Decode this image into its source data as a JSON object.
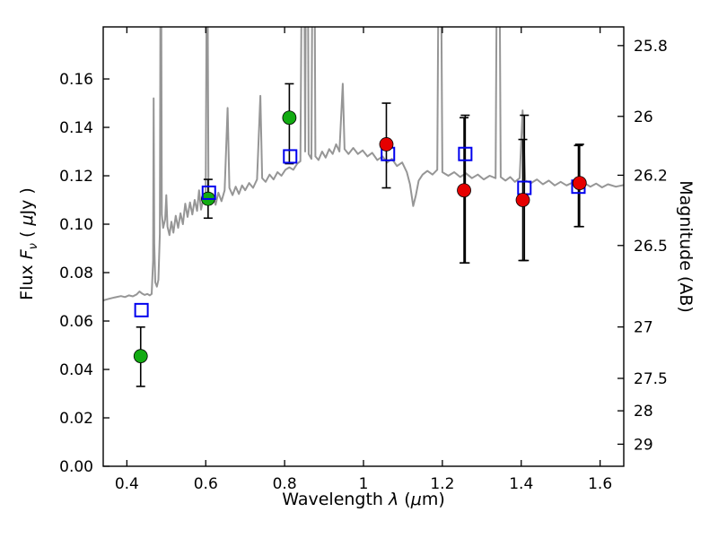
{
  "axes": {
    "xlabel": {
      "pre": "Wavelength  ",
      "lambda": "λ",
      "mid": "  (",
      "mu": "μ",
      "post": "m)"
    },
    "ylabel_left": {
      "pre": "Flux  ",
      "F": "F",
      "nu": "ν",
      "mid": "  ( ",
      "mu": "μ",
      "post": "Jy )"
    },
    "ylabel_right": "Magnitude (AB)"
  },
  "chart_data": {
    "type": "line+scatter",
    "title": "",
    "xlabel": "Wavelength λ (μm)",
    "ylabel_left": "Flux Fν ( μJy )",
    "ylabel_right": "Magnitude (AB)",
    "xlim": [
      0.34,
      1.66
    ],
    "ylim": [
      0,
      0.1815
    ],
    "grid": false,
    "legend": "none",
    "mag_zeropoint": 23.9,
    "x_ticks": [
      [
        0.4,
        "0.4"
      ],
      [
        0.6,
        "0.6"
      ],
      [
        0.8,
        "0.8"
      ],
      [
        1,
        "1"
      ],
      [
        1.2,
        "1.2"
      ],
      [
        1.4,
        "1.4"
      ],
      [
        1.6,
        "1.6"
      ]
    ],
    "y_ticks": [
      [
        0,
        "0.00"
      ],
      [
        0.02,
        "0.02"
      ],
      [
        0.04,
        "0.04"
      ],
      [
        0.06,
        "0.06"
      ],
      [
        0.08,
        "0.08"
      ],
      [
        0.1,
        "0.10"
      ],
      [
        0.12,
        "0.12"
      ],
      [
        0.14,
        "0.14"
      ],
      [
        0.16,
        "0.16"
      ]
    ],
    "mag_ticks": [
      [
        25.8,
        "25.8"
      ],
      [
        26,
        "26"
      ],
      [
        26.2,
        "26.2"
      ],
      [
        26.5,
        "26.5"
      ],
      [
        27,
        "27"
      ],
      [
        27.5,
        "27.5"
      ],
      [
        28,
        "28"
      ],
      [
        29,
        "29"
      ]
    ],
    "colors": {
      "spectrum": "#969696",
      "green": "#12ab12",
      "red": "#e60000",
      "blue": "#0000ee",
      "error": "#000000"
    },
    "spectrum": {
      "name": "model-spectrum",
      "color": "#969696",
      "points": [
        [
          0.34,
          0.0685
        ],
        [
          0.355,
          0.0692
        ],
        [
          0.37,
          0.0698
        ],
        [
          0.385,
          0.0703
        ],
        [
          0.395,
          0.0699
        ],
        [
          0.405,
          0.0706
        ],
        [
          0.415,
          0.0702
        ],
        [
          0.425,
          0.071
        ],
        [
          0.432,
          0.0722
        ],
        [
          0.438,
          0.0714
        ],
        [
          0.445,
          0.0708
        ],
        [
          0.452,
          0.0712
        ],
        [
          0.458,
          0.0706
        ],
        [
          0.463,
          0.0712
        ],
        [
          0.4665,
          0.085
        ],
        [
          0.468,
          0.152
        ],
        [
          0.4695,
          0.092
        ],
        [
          0.472,
          0.076
        ],
        [
          0.476,
          0.0742
        ],
        [
          0.48,
          0.077
        ],
        [
          0.4835,
          0.096
        ],
        [
          0.486,
          0.26
        ],
        [
          0.4885,
          0.104
        ],
        [
          0.492,
          0.0985
        ],
        [
          0.497,
          0.102
        ],
        [
          0.5,
          0.112
        ],
        [
          0.503,
          0.099
        ],
        [
          0.508,
          0.0955
        ],
        [
          0.513,
          0.101
        ],
        [
          0.518,
          0.0965
        ],
        [
          0.524,
          0.1035
        ],
        [
          0.53,
          0.0985
        ],
        [
          0.536,
          0.1045
        ],
        [
          0.542,
          0.1
        ],
        [
          0.548,
          0.1085
        ],
        [
          0.554,
          0.103
        ],
        [
          0.56,
          0.109
        ],
        [
          0.566,
          0.104
        ],
        [
          0.572,
          0.11
        ],
        [
          0.578,
          0.1055
        ],
        [
          0.583,
          0.114
        ],
        [
          0.588,
          0.106
        ],
        [
          0.594,
          0.1105
        ],
        [
          0.6,
          0.112
        ],
        [
          0.6035,
          0.24
        ],
        [
          0.607,
          0.1135
        ],
        [
          0.612,
          0.1085
        ],
        [
          0.618,
          0.1125
        ],
        [
          0.625,
          0.108
        ],
        [
          0.632,
          0.113
        ],
        [
          0.64,
          0.1095
        ],
        [
          0.648,
          0.114
        ],
        [
          0.6555,
          0.148
        ],
        [
          0.66,
          0.115
        ],
        [
          0.668,
          0.112
        ],
        [
          0.676,
          0.1155
        ],
        [
          0.684,
          0.1125
        ],
        [
          0.692,
          0.116
        ],
        [
          0.7,
          0.114
        ],
        [
          0.71,
          0.117
        ],
        [
          0.72,
          0.115
        ],
        [
          0.73,
          0.1185
        ],
        [
          0.7385,
          0.153
        ],
        [
          0.743,
          0.119
        ],
        [
          0.752,
          0.1175
        ],
        [
          0.762,
          0.1205
        ],
        [
          0.772,
          0.1185
        ],
        [
          0.782,
          0.1215
        ],
        [
          0.792,
          0.12
        ],
        [
          0.802,
          0.1225
        ],
        [
          0.812,
          0.1235
        ],
        [
          0.822,
          0.1225
        ],
        [
          0.832,
          0.125
        ],
        [
          0.84,
          0.126
        ],
        [
          0.8475,
          0.3
        ],
        [
          0.852,
          0.13
        ],
        [
          0.8565,
          0.32
        ],
        [
          0.861,
          0.129
        ],
        [
          0.868,
          0.127
        ],
        [
          0.8735,
          0.31
        ],
        [
          0.878,
          0.128
        ],
        [
          0.886,
          0.1265
        ],
        [
          0.895,
          0.13
        ],
        [
          0.904,
          0.1275
        ],
        [
          0.913,
          0.131
        ],
        [
          0.922,
          0.129
        ],
        [
          0.9305,
          0.133
        ],
        [
          0.939,
          0.13
        ],
        [
          0.9475,
          0.158
        ],
        [
          0.952,
          0.131
        ],
        [
          0.962,
          0.129
        ],
        [
          0.974,
          0.1315
        ],
        [
          0.986,
          0.129
        ],
        [
          0.998,
          0.1305
        ],
        [
          1.01,
          0.128
        ],
        [
          1.022,
          0.1295
        ],
        [
          1.035,
          0.1265
        ],
        [
          1.048,
          0.128
        ],
        [
          1.06,
          0.1255
        ],
        [
          1.072,
          0.127
        ],
        [
          1.085,
          0.124
        ],
        [
          1.098,
          0.1255
        ],
        [
          1.11,
          0.1215
        ],
        [
          1.118,
          0.1165
        ],
        [
          1.126,
          0.1075
        ],
        [
          1.133,
          0.112
        ],
        [
          1.14,
          0.118
        ],
        [
          1.15,
          0.1205
        ],
        [
          1.162,
          0.122
        ],
        [
          1.175,
          0.1205
        ],
        [
          1.187,
          0.1225
        ],
        [
          1.1935,
          0.29
        ],
        [
          1.2,
          0.1215
        ],
        [
          1.215,
          0.12
        ],
        [
          1.23,
          0.1215
        ],
        [
          1.245,
          0.1195
        ],
        [
          1.26,
          0.121
        ],
        [
          1.275,
          0.119
        ],
        [
          1.29,
          0.1205
        ],
        [
          1.305,
          0.1185
        ],
        [
          1.32,
          0.12
        ],
        [
          1.335,
          0.119
        ],
        [
          1.3415,
          0.31
        ],
        [
          1.348,
          0.1195
        ],
        [
          1.36,
          0.118
        ],
        [
          1.372,
          0.1195
        ],
        [
          1.384,
          0.1175
        ],
        [
          1.396,
          0.119
        ],
        [
          1.4035,
          0.147
        ],
        [
          1.41,
          0.118
        ],
        [
          1.425,
          0.117
        ],
        [
          1.44,
          0.1185
        ],
        [
          1.455,
          0.1165
        ],
        [
          1.47,
          0.118
        ],
        [
          1.485,
          0.116
        ],
        [
          1.5,
          0.1175
        ],
        [
          1.515,
          0.116
        ],
        [
          1.53,
          0.1172
        ],
        [
          1.545,
          0.1158
        ],
        [
          1.56,
          0.117
        ],
        [
          1.575,
          0.1155
        ],
        [
          1.59,
          0.1168
        ],
        [
          1.605,
          0.1152
        ],
        [
          1.62,
          0.1165
        ],
        [
          1.64,
          0.1155
        ],
        [
          1.66,
          0.1162
        ]
      ]
    },
    "series": [
      {
        "name": "green-circles",
        "marker": "circle",
        "color": "#12ab12",
        "points": [
          {
            "x": 0.435,
            "y": 0.0455,
            "elo": 0.0125,
            "ehi": 0.012
          },
          {
            "x": 0.606,
            "y": 0.1105,
            "elo": 0.008,
            "ehi": 0.008
          },
          {
            "x": 0.812,
            "y": 0.144,
            "elo": 0.019,
            "ehi": 0.014
          }
        ]
      },
      {
        "name": "blue-open-squares",
        "marker": "square",
        "color": "#0000ee",
        "points": [
          {
            "x": 0.437,
            "y": 0.0645,
            "elo": 0,
            "ehi": 0
          },
          {
            "x": 0.608,
            "y": 0.113,
            "elo": 0,
            "ehi": 0
          },
          {
            "x": 0.814,
            "y": 0.128,
            "elo": 0,
            "ehi": 0
          },
          {
            "x": 1.062,
            "y": 0.129,
            "elo": 0,
            "ehi": 0
          },
          {
            "x": 1.258,
            "y": 0.129,
            "elo": 0.045,
            "ehi": 0.016
          },
          {
            "x": 1.408,
            "y": 0.115,
            "elo": 0.03,
            "ehi": 0.03
          },
          {
            "x": 1.545,
            "y": 0.1155,
            "elo": 0.0165,
            "ehi": 0.017
          }
        ]
      },
      {
        "name": "red-circles",
        "marker": "circle",
        "color": "#e60000",
        "points": [
          {
            "x": 1.058,
            "y": 0.133,
            "elo": 0.018,
            "ehi": 0.017
          },
          {
            "x": 1.255,
            "y": 0.114,
            "elo": 0.03,
            "ehi": 0.03
          },
          {
            "x": 1.404,
            "y": 0.11,
            "elo": 0.025,
            "ehi": 0.025
          },
          {
            "x": 1.548,
            "y": 0.117,
            "elo": 0.018,
            "ehi": 0.016
          }
        ]
      }
    ]
  }
}
